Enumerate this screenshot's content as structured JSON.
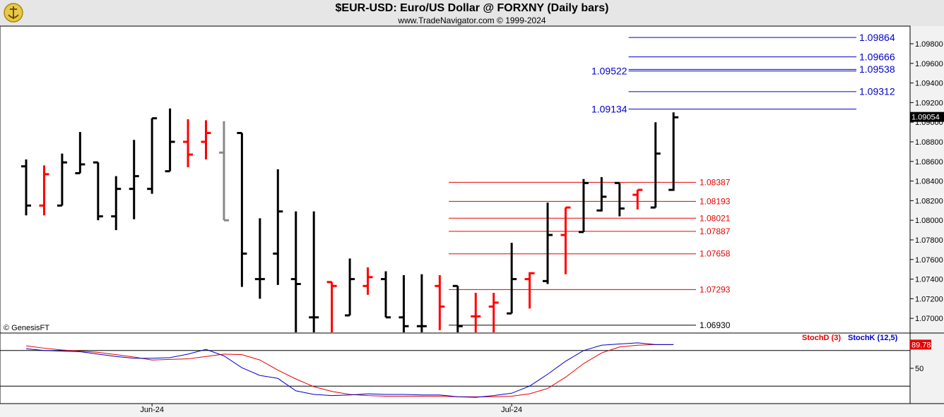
{
  "header": {
    "title": "$EUR-USD:  Euro/US Dollar @ FORXNY  (Daily bars)",
    "subtitle": "www.TradeNavigator.com © 1999-2024"
  },
  "copyright": "© GenesisFT",
  "colors": {
    "up_bar": "#000000",
    "down_bar": "#ff0000",
    "neutral_bar": "#888888",
    "blue_level": "#0000cc",
    "red_level": "#e60000",
    "stochD": "#e60000",
    "stochK": "#0000cc",
    "last_price_bg": "#000000"
  },
  "chart_data": [
    {
      "type": "ohlc",
      "title": "$EUR-USD:  Euro/US Dollar @ FORXNY  (Daily bars)",
      "y_ticks": [
        "1.09800",
        "1.09600",
        "1.09400",
        "1.09200",
        "1.09000",
        "1.08800",
        "1.08600",
        "1.08400",
        "1.08200",
        "1.08000",
        "1.07800",
        "1.07600",
        "1.07400",
        "1.07200",
        "1.07000"
      ],
      "ylim": [
        1.0685,
        1.0998
      ],
      "x_labels": [
        {
          "label": "Jun-24",
          "bar": 7
        },
        {
          "label": "Jul-24",
          "bar": 27
        }
      ],
      "last_price_label": "1.09054",
      "last_price": 1.09054,
      "bars": [
        {
          "o": 1.0855,
          "h": 1.0862,
          "l": 1.0805,
          "c": 1.0815,
          "color": "black"
        },
        {
          "o": 1.0815,
          "h": 1.0856,
          "l": 1.0805,
          "c": 1.0847,
          "color": "red"
        },
        {
          "o": 1.0815,
          "h": 1.0868,
          "l": 1.0815,
          "c": 1.0859,
          "color": "black"
        },
        {
          "o": 1.0848,
          "h": 1.089,
          "l": 1.0848,
          "c": 1.0857,
          "color": "black"
        },
        {
          "o": 1.0859,
          "h": 1.0859,
          "l": 1.08,
          "c": 1.0804,
          "color": "black"
        },
        {
          "o": 1.0804,
          "h": 1.0845,
          "l": 1.079,
          "c": 1.0832,
          "color": "black"
        },
        {
          "o": 1.0832,
          "h": 1.0882,
          "l": 1.0801,
          "c": 1.0845,
          "color": "black"
        },
        {
          "o": 1.0832,
          "h": 1.0904,
          "l": 1.0827,
          "c": 1.0904,
          "color": "black"
        },
        {
          "o": 1.085,
          "h": 1.0914,
          "l": 1.085,
          "c": 1.088,
          "color": "black"
        },
        {
          "o": 1.088,
          "h": 1.0903,
          "l": 1.0854,
          "c": 1.0867,
          "color": "red"
        },
        {
          "o": 1.088,
          "h": 1.0902,
          "l": 1.0862,
          "c": 1.0889,
          "color": "red"
        },
        {
          "o": 1.0869,
          "h": 1.0901,
          "l": 1.08,
          "c": 1.08,
          "color": "gray"
        },
        {
          "o": 1.0889,
          "h": 1.0889,
          "l": 1.0732,
          "c": 1.0766,
          "color": "black"
        },
        {
          "o": 1.074,
          "h": 1.0802,
          "l": 1.072,
          "c": 1.074,
          "color": "black"
        },
        {
          "o": 1.0766,
          "h": 1.0852,
          "l": 1.0734,
          "c": 1.0809,
          "color": "black"
        },
        {
          "o": 1.074,
          "h": 1.0809,
          "l": 1.0685,
          "c": 1.0735,
          "color": "black"
        },
        {
          "o": 1.0701,
          "h": 1.0809,
          "l": 1.0685,
          "c": 1.0701,
          "color": "black"
        },
        {
          "o": 1.0737,
          "h": 1.0737,
          "l": 1.0685,
          "c": 1.0733,
          "color": "red"
        },
        {
          "o": 1.0703,
          "h": 1.0761,
          "l": 1.0703,
          "c": 1.074,
          "color": "black"
        },
        {
          "o": 1.0733,
          "h": 1.0752,
          "l": 1.0724,
          "c": 1.0742,
          "color": "red"
        },
        {
          "o": 1.074,
          "h": 1.0748,
          "l": 1.0701,
          "c": 1.0701,
          "color": "black"
        },
        {
          "o": 1.0701,
          "h": 1.0744,
          "l": 1.0685,
          "c": 1.0692,
          "color": "black"
        },
        {
          "o": 1.0692,
          "h": 1.0745,
          "l": 1.0685,
          "c": 1.0692,
          "color": "black"
        },
        {
          "o": 1.0733,
          "h": 1.0744,
          "l": 1.0688,
          "c": 1.0712,
          "color": "red"
        },
        {
          "o": 1.0733,
          "h": 1.0733,
          "l": 1.0685,
          "c": 1.0692,
          "color": "black"
        },
        {
          "o": 1.0702,
          "h": 1.0726,
          "l": 1.0685,
          "c": 1.0702,
          "color": "red"
        },
        {
          "o": 1.0712,
          "h": 1.0726,
          "l": 1.0685,
          "c": 1.0716,
          "color": "red"
        },
        {
          "o": 1.0705,
          "h": 1.0777,
          "l": 1.0705,
          "c": 1.074,
          "color": "black"
        },
        {
          "o": 1.074,
          "h": 1.0747,
          "l": 1.071,
          "c": 1.0746,
          "color": "red"
        },
        {
          "o": 1.0738,
          "h": 1.0818,
          "l": 1.0735,
          "c": 1.0785,
          "color": "black"
        },
        {
          "o": 1.0785,
          "h": 1.0813,
          "l": 1.0745,
          "c": 1.0813,
          "color": "red"
        },
        {
          "o": 1.0788,
          "h": 1.0842,
          "l": 1.0788,
          "c": 1.0838,
          "color": "black"
        },
        {
          "o": 1.081,
          "h": 1.0844,
          "l": 1.0809,
          "c": 1.0824,
          "color": "black"
        },
        {
          "o": 1.0838,
          "h": 1.0838,
          "l": 1.0804,
          "c": 1.0812,
          "color": "black"
        },
        {
          "o": 1.0826,
          "h": 1.0831,
          "l": 1.0811,
          "c": 1.0831,
          "color": "red"
        },
        {
          "o": 1.0813,
          "h": 1.09,
          "l": 1.0813,
          "c": 1.0868,
          "color": "black"
        },
        {
          "o": 1.0831,
          "h": 1.091,
          "l": 1.083,
          "c": 1.0905,
          "color": "black"
        }
      ],
      "levels": [
        {
          "label": "1.09864",
          "value": 1.09864,
          "color": "blue",
          "from_bar": 33.5,
          "label_side": "right"
        },
        {
          "label": "1.09666",
          "value": 1.09666,
          "color": "blue",
          "from_bar": 33.5,
          "label_side": "right"
        },
        {
          "label": "1.09538",
          "value": 1.09538,
          "color": "blue",
          "from_bar": 33.5,
          "label_side": "right"
        },
        {
          "label": "1.09522",
          "value": 1.09522,
          "color": "blue",
          "from_bar": 33.5,
          "label_side": "left"
        },
        {
          "label": "1.09312",
          "value": 1.09312,
          "color": "blue",
          "from_bar": 33.5,
          "label_side": "right"
        },
        {
          "label": "1.09134",
          "value": 1.09134,
          "color": "blue",
          "from_bar": 33.5,
          "label_side": "left"
        },
        {
          "label": "1.08387",
          "value": 1.08387,
          "color": "red",
          "from_bar": 23.5,
          "label_side": "right"
        },
        {
          "label": "1.08193",
          "value": 1.08193,
          "color": "red",
          "from_bar": 23.5,
          "label_side": "right"
        },
        {
          "label": "1.08021",
          "value": 1.08021,
          "color": "red",
          "from_bar": 23.5,
          "label_side": "right"
        },
        {
          "label": "1.07887",
          "value": 1.07887,
          "color": "red",
          "from_bar": 23.5,
          "label_side": "right"
        },
        {
          "label": "1.07658",
          "value": 1.07658,
          "color": "red",
          "from_bar": 23.5,
          "label_side": "right"
        },
        {
          "label": "1.07293",
          "value": 1.07293,
          "color": "red",
          "from_bar": 23.5,
          "label_side": "right"
        },
        {
          "label": "1.06930",
          "value": 1.0693,
          "color": "black",
          "from_bar": 23.5,
          "label_side": "right"
        }
      ]
    },
    {
      "type": "line",
      "ylim": [
        0,
        100
      ],
      "y_ticks": [
        "50"
      ],
      "reference_lines": [
        80,
        20
      ],
      "legend": [
        "StochD (3)",
        "StochK (12,5)"
      ],
      "last_value_label": "89.78",
      "series": [
        {
          "name": "StochD (3)",
          "values": [
            88,
            84,
            81,
            79,
            77,
            73,
            69,
            64,
            65,
            66,
            70,
            74,
            73,
            64,
            47,
            32,
            19,
            11,
            6,
            4,
            3,
            3,
            3,
            3,
            2,
            2,
            2,
            3,
            7,
            16,
            35,
            58,
            76,
            86,
            89,
            90,
            90
          ]
        },
        {
          "name": "StochK (12,5)",
          "values": [
            83,
            80,
            79,
            78,
            74,
            70,
            67,
            67,
            68,
            74,
            82,
            71,
            51,
            38,
            33,
            12,
            6,
            4,
            5,
            7,
            6,
            6,
            5,
            5,
            2,
            1,
            4,
            8,
            20,
            40,
            62,
            80,
            89,
            91,
            93,
            90,
            90
          ]
        }
      ]
    }
  ]
}
